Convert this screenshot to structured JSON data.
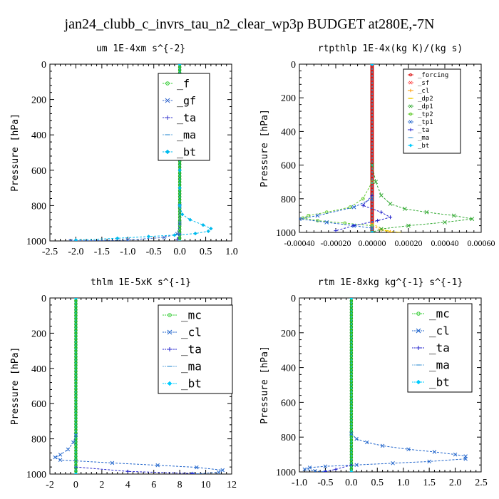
{
  "figure": {
    "title": "jan24_clubb_c_invrs_tau_n2_clear_wp3p  BUDGET at280E,-7N"
  },
  "chart_data": [
    {
      "type": "line",
      "title": "um  1E-4xm s^{-2}",
      "ylabel": "Pressure [hPa]",
      "xlim": [
        -2.5,
        1.0
      ],
      "ylim": [
        1000,
        0
      ],
      "xticks": [
        "-2.5",
        "-2.0",
        "-1.5",
        "-1.0",
        "-0.5",
        "0.0",
        "0.5",
        "1.0"
      ],
      "yticks": [
        "0",
        "200",
        "400",
        "600",
        "800",
        "1000"
      ],
      "legend_position": "top-right",
      "series": [
        {
          "name": "_f",
          "color": "#33cc33",
          "marker": "circle",
          "points": [
            [
              0,
              0
            ],
            [
              0,
              100
            ],
            [
              0,
              200
            ],
            [
              0,
              300
            ],
            [
              0,
              400
            ],
            [
              0,
              500
            ],
            [
              0,
              600
            ],
            [
              0,
              700
            ],
            [
              0,
              800
            ],
            [
              0,
              900
            ],
            [
              0,
              1000
            ]
          ]
        },
        {
          "name": "_gf",
          "color": "#3366cc",
          "marker": "x",
          "points": [
            [
              0,
              800
            ],
            [
              0,
              900
            ],
            [
              -0.05,
              960
            ],
            [
              -0.3,
              980
            ],
            [
              -1.0,
              995
            ],
            [
              -2.1,
              1000
            ]
          ]
        },
        {
          "name": "_ta",
          "color": "#3333cc",
          "marker": "plus",
          "points": [
            [
              0,
              960
            ],
            [
              -0.05,
              990
            ]
          ]
        },
        {
          "name": "_ma",
          "color": "#66aadd",
          "marker": "dash",
          "points": [
            [
              0,
              0
            ],
            [
              0,
              1000
            ]
          ]
        },
        {
          "name": "_bt",
          "color": "#00bbee",
          "marker": "diamond",
          "points": [
            [
              0,
              0
            ],
            [
              0,
              100
            ],
            [
              0,
              200
            ],
            [
              0,
              300
            ],
            [
              0,
              400
            ],
            [
              0,
              500
            ],
            [
              0,
              600
            ],
            [
              0,
              700
            ],
            [
              0,
              800
            ],
            [
              0.05,
              850
            ],
            [
              0.2,
              880
            ],
            [
              0.45,
              910
            ],
            [
              0.6,
              930
            ],
            [
              0.55,
              945
            ],
            [
              0.3,
              958
            ],
            [
              -0.1,
              967
            ],
            [
              -0.6,
              975
            ],
            [
              -1.2,
              985
            ],
            [
              -2.0,
              995
            ]
          ]
        }
      ]
    },
    {
      "type": "line",
      "title": "rtpthlp  1E-4x(kg K)/(kg s)",
      "ylabel": "Pressure [hPa]",
      "xlim": [
        -0.0004,
        0.0006
      ],
      "ylim": [
        1000,
        0
      ],
      "xticks": [
        "-0.00040",
        "-0.00020",
        "0.00000",
        "0.00020",
        "0.00040",
        "0.00060"
      ],
      "yticks": [
        "0",
        "200",
        "400",
        "600",
        "800",
        "1000"
      ],
      "legend_position": "top-right",
      "series": [
        {
          "name": "_forcing",
          "color": "#dd2222",
          "marker": "circle",
          "points": [
            [
              0,
              0
            ],
            [
              0,
              200
            ],
            [
              0,
              400
            ],
            [
              0,
              600
            ],
            [
              0,
              800
            ],
            [
              0,
              1000
            ]
          ]
        },
        {
          "name": "_sf",
          "color": "#ff4444",
          "marker": "x",
          "points": [
            [
              0,
              950
            ],
            [
              0,
              1000
            ]
          ]
        },
        {
          "name": "_cl",
          "color": "#ff9900",
          "marker": "plus",
          "points": [
            [
              0,
              960
            ],
            [
              5e-05,
              985
            ],
            [
              0.0001,
              998
            ]
          ]
        },
        {
          "name": "_dp2",
          "color": "#eecc00",
          "marker": "dash",
          "points": [
            [
              0,
              950
            ],
            [
              8e-05,
              990
            ],
            [
              0.00015,
              1000
            ]
          ]
        },
        {
          "name": "_dp1",
          "color": "#33aa33",
          "marker": "x",
          "points": [
            [
              0,
              600
            ],
            [
              2e-05,
              700
            ],
            [
              5e-05,
              780
            ],
            [
              0.0001,
              830
            ],
            [
              0.00018,
              860
            ],
            [
              0.0003,
              880
            ],
            [
              0.00045,
              900
            ],
            [
              0.00055,
              920
            ],
            [
              0.0004,
              940
            ],
            [
              0.0002,
              960
            ],
            [
              5e-05,
              980
            ],
            [
              0,
              1000
            ]
          ]
        },
        {
          "name": "_tp2",
          "color": "#66cc33",
          "marker": "circle",
          "points": [
            [
              0,
              700
            ],
            [
              -5e-05,
              800
            ],
            [
              -0.00012,
              850
            ],
            [
              -0.00025,
              880
            ],
            [
              -0.00035,
              900
            ],
            [
              -0.00038,
              915
            ],
            [
              -0.0003,
              930
            ],
            [
              -0.00015,
              945
            ],
            [
              0,
              960
            ]
          ]
        },
        {
          "name": "_tp1",
          "color": "#2266cc",
          "marker": "x",
          "points": [
            [
              0,
              800
            ],
            [
              -0.0001,
              850
            ],
            [
              -0.0003,
              900
            ],
            [
              -0.0004,
              920
            ],
            [
              -0.00025,
              940
            ],
            [
              -0.0001,
              960
            ],
            [
              0,
              975
            ]
          ]
        },
        {
          "name": "_ta",
          "color": "#2222cc",
          "marker": "plus",
          "points": [
            [
              0,
              780
            ],
            [
              -5e-05,
              840
            ],
            [
              5e-05,
              880
            ],
            [
              0.0001,
              910
            ],
            [
              3e-05,
              930
            ],
            [
              -0.0001,
              960
            ],
            [
              -0.0002,
              990
            ]
          ]
        },
        {
          "name": "_ma",
          "color": "#66aadd",
          "marker": "dash",
          "points": [
            [
              0,
              0
            ],
            [
              0,
              1000
            ]
          ]
        },
        {
          "name": "_bt",
          "color": "#00ccff",
          "marker": "diamond",
          "points": [
            [
              0,
              0
            ],
            [
              0,
              1000
            ]
          ]
        }
      ]
    },
    {
      "type": "line",
      "title": "thlm  1E-5xK s^{-1}",
      "ylabel": "Pressure [hPa]",
      "xlim": [
        -2,
        12
      ],
      "ylim": [
        1000,
        0
      ],
      "xticks": [
        "-2",
        "0",
        "2",
        "4",
        "6",
        "8",
        "10",
        "12"
      ],
      "yticks": [
        "0",
        "200",
        "400",
        "600",
        "800",
        "1000"
      ],
      "legend_position": "top-right",
      "series": [
        {
          "name": "_mc",
          "color": "#33cc33",
          "marker": "circle",
          "points": [
            [
              0,
              0
            ],
            [
              0,
              100
            ],
            [
              0,
              200
            ],
            [
              0,
              300
            ],
            [
              0,
              400
            ],
            [
              0,
              500
            ],
            [
              0,
              600
            ],
            [
              0,
              700
            ],
            [
              0,
              800
            ],
            [
              0,
              900
            ],
            [
              0,
              1000
            ]
          ]
        },
        {
          "name": "_cl",
          "color": "#2266cc",
          "marker": "x",
          "points": [
            [
              0,
              780
            ],
            [
              -0.2,
              820
            ],
            [
              -0.6,
              860
            ],
            [
              -1.2,
              890
            ],
            [
              -1.6,
              905
            ],
            [
              -1.2,
              920
            ],
            [
              2.8,
              937
            ],
            [
              6.3,
              950
            ],
            [
              9.3,
              962
            ],
            [
              11.3,
              978
            ],
            [
              11.0,
              990
            ],
            [
              9.0,
              1000
            ]
          ]
        },
        {
          "name": "_ta",
          "color": "#2222cc",
          "marker": "plus",
          "points": [
            [
              0,
              960
            ],
            [
              4,
              985
            ],
            [
              9,
              997
            ]
          ]
        },
        {
          "name": "_ma",
          "color": "#66aadd",
          "marker": "dash",
          "points": [
            [
              0,
              0
            ],
            [
              0,
              1000
            ]
          ]
        },
        {
          "name": "_bt",
          "color": "#00ccff",
          "marker": "diamond",
          "points": [
            [
              0,
              0
            ],
            [
              0,
              1000
            ]
          ]
        }
      ]
    },
    {
      "type": "line",
      "title": "rtm  1E-8xkg kg^{-1} s^{-1}",
      "ylabel": "Pressure [hPa]",
      "xlim": [
        -1.0,
        2.5
      ],
      "ylim": [
        1000,
        0
      ],
      "xticks": [
        "-1.0",
        "-0.5",
        "0.0",
        "0.5",
        "1.0",
        "1.5",
        "2.0",
        "2.5"
      ],
      "yticks": [
        "0",
        "200",
        "400",
        "600",
        "800",
        "1000"
      ],
      "legend_position": "top-right",
      "series": [
        {
          "name": "_mc",
          "color": "#33cc33",
          "marker": "circle",
          "points": [
            [
              0,
              0
            ],
            [
              0,
              100
            ],
            [
              0,
              200
            ],
            [
              0,
              300
            ],
            [
              0,
              400
            ],
            [
              0,
              500
            ],
            [
              0,
              600
            ],
            [
              0,
              700
            ],
            [
              0,
              800
            ],
            [
              0,
              900
            ],
            [
              0,
              1000
            ]
          ]
        },
        {
          "name": "_cl",
          "color": "#2266cc",
          "marker": "x",
          "points": [
            [
              0,
              780
            ],
            [
              0.1,
              810
            ],
            [
              0.3,
              830
            ],
            [
              0.6,
              850
            ],
            [
              1.1,
              870
            ],
            [
              1.6,
              885
            ],
            [
              2.0,
              900
            ],
            [
              2.2,
              910
            ],
            [
              2.2,
              925
            ],
            [
              1.5,
              940
            ],
            [
              0.8,
              950
            ],
            [
              0.1,
              960
            ],
            [
              -0.5,
              968
            ],
            [
              -0.8,
              975
            ],
            [
              -0.9,
              985
            ],
            [
              -0.7,
              995
            ],
            [
              -0.5,
              1000
            ]
          ]
        },
        {
          "name": "_ta",
          "color": "#2222cc",
          "marker": "plus",
          "points": [
            [
              0,
              960
            ],
            [
              -0.3,
              985
            ],
            [
              -0.5,
              998
            ]
          ]
        },
        {
          "name": "_ma",
          "color": "#66aadd",
          "marker": "dash",
          "points": [
            [
              0,
              0
            ],
            [
              0,
              1000
            ]
          ]
        },
        {
          "name": "_bt",
          "color": "#00ccff",
          "marker": "diamond",
          "points": [
            [
              0,
              0
            ],
            [
              0,
              1000
            ]
          ]
        }
      ]
    }
  ]
}
